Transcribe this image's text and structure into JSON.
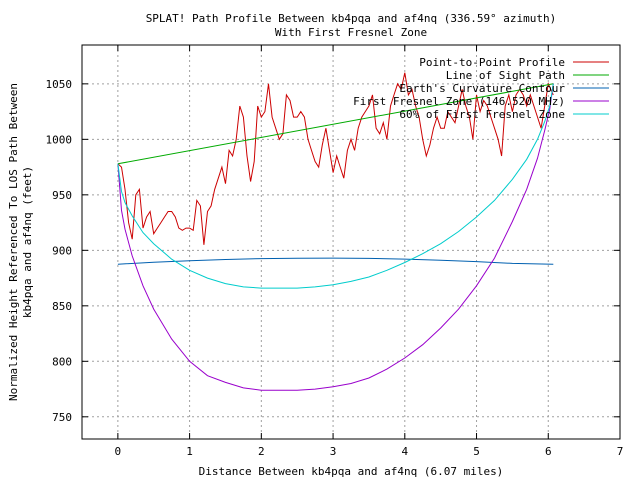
{
  "chart_data": {
    "type": "line",
    "title": [
      "SPLAT! Path Profile Between kb4pqa and af4nq (336.59° azimuth)",
      "With First Fresnel Zone"
    ],
    "xlabel": "Distance Between kb4pqa and af4nq (6.07 miles)",
    "ylabel": [
      "Normalized Height Referenced To LOS Path Between",
      "kb4pqa and af4nq (feet)"
    ],
    "xlim": [
      -0.5,
      7
    ],
    "ylim": [
      730,
      1085
    ],
    "xticks": [
      0,
      1,
      2,
      3,
      4,
      5,
      6,
      7
    ],
    "yticks": [
      750,
      800,
      850,
      900,
      950,
      1000,
      1050
    ],
    "grid": true,
    "legend_position": "top-right",
    "series": [
      {
        "name": "Point-to-Point Profile",
        "color": "#cc0000",
        "x": [
          0,
          0.05,
          0.1,
          0.15,
          0.2,
          0.25,
          0.3,
          0.35,
          0.4,
          0.45,
          0.5,
          0.55,
          0.6,
          0.65,
          0.7,
          0.75,
          0.8,
          0.85,
          0.9,
          0.95,
          1.0,
          1.05,
          1.1,
          1.15,
          1.2,
          1.25,
          1.3,
          1.35,
          1.4,
          1.45,
          1.5,
          1.55,
          1.6,
          1.65,
          1.7,
          1.75,
          1.8,
          1.85,
          1.9,
          1.95,
          2.0,
          2.05,
          2.1,
          2.15,
          2.2,
          2.25,
          2.3,
          2.35,
          2.4,
          2.45,
          2.5,
          2.55,
          2.6,
          2.65,
          2.7,
          2.75,
          2.8,
          2.85,
          2.9,
          2.95,
          3.0,
          3.05,
          3.1,
          3.15,
          3.2,
          3.25,
          3.3,
          3.35,
          3.4,
          3.45,
          3.5,
          3.55,
          3.6,
          3.65,
          3.7,
          3.75,
          3.8,
          3.85,
          3.9,
          3.95,
          4.0,
          4.05,
          4.1,
          4.15,
          4.2,
          4.25,
          4.3,
          4.35,
          4.4,
          4.45,
          4.5,
          4.55,
          4.6,
          4.65,
          4.7,
          4.75,
          4.8,
          4.85,
          4.9,
          4.95,
          5.0,
          5.05,
          5.1,
          5.15,
          5.2,
          5.25,
          5.3,
          5.35,
          5.4,
          5.45,
          5.5,
          5.55,
          5.6,
          5.65,
          5.7,
          5.75,
          5.8,
          5.85,
          5.9,
          5.95,
          6.0,
          6.07
        ],
        "y": [
          978,
          975,
          955,
          925,
          910,
          950,
          955,
          920,
          930,
          935,
          915,
          920,
          925,
          930,
          935,
          935,
          930,
          920,
          918,
          920,
          920,
          918,
          945,
          940,
          905,
          935,
          940,
          955,
          965,
          975,
          960,
          990,
          985,
          1000,
          1030,
          1020,
          985,
          962,
          980,
          1030,
          1020,
          1025,
          1050,
          1020,
          1010,
          1000,
          1005,
          1040,
          1035,
          1020,
          1020,
          1025,
          1020,
          1000,
          990,
          980,
          975,
          995,
          1010,
          990,
          970,
          985,
          975,
          965,
          990,
          1000,
          990,
          1010,
          1020,
          1025,
          1030,
          1040,
          1010,
          1005,
          1015,
          1000,
          1030,
          1040,
          1050,
          1045,
          1060,
          1040,
          1045,
          1030,
          1020,
          1000,
          985,
          995,
          1010,
          1020,
          1010,
          1010,
          1025,
          1020,
          1015,
          1030,
          1045,
          1030,
          1020,
          1000,
          1040,
          1025,
          1035,
          1030,
          1020,
          1010,
          1000,
          985,
          1030,
          1040,
          1025,
          1040,
          1045,
          1040,
          1030,
          1040,
          1030,
          1020,
          1010,
          1030,
          1050,
          1040
        ]
      },
      {
        "name": "Line of Sight Path",
        "color": "#00aa00",
        "x": [
          0,
          6.07
        ],
        "y": [
          978,
          1050
        ]
      },
      {
        "name": "Earth's Curvature Contour",
        "color": "#0060b0",
        "x": [
          0,
          0.5,
          1,
          1.5,
          2,
          2.5,
          3,
          3.5,
          4,
          4.5,
          5,
          5.5,
          6.07
        ],
        "y": [
          887.5,
          889.2,
          890.6,
          891.7,
          892.5,
          892.9,
          893.0,
          892.7,
          892.1,
          891.1,
          889.8,
          888.2,
          887.5
        ]
      },
      {
        "name": "First Fresnel Zone (146.520 MHz)",
        "color": "#9900cc",
        "x": [
          0,
          0.05,
          0.1,
          0.2,
          0.35,
          0.5,
          0.75,
          1,
          1.25,
          1.5,
          1.75,
          2,
          2.25,
          2.5,
          2.75,
          3,
          3.25,
          3.5,
          3.75,
          4,
          4.25,
          4.5,
          4.75,
          5,
          5.25,
          5.5,
          5.7,
          5.85,
          5.95,
          6.02,
          6.07
        ],
        "y": [
          978,
          936,
          919,
          895,
          868,
          847,
          820,
          800,
          787,
          781,
          776,
          774,
          774,
          774,
          775,
          777,
          780,
          785,
          793,
          803,
          815,
          830,
          847,
          868,
          893,
          926,
          955,
          983,
          1008,
          1027,
          1050
        ]
      },
      {
        "name": "60% of First Fresnel Zone",
        "color": "#00cccc",
        "x": [
          0,
          0.05,
          0.1,
          0.2,
          0.35,
          0.5,
          0.75,
          1,
          1.25,
          1.5,
          1.75,
          2,
          2.25,
          2.5,
          2.75,
          3,
          3.25,
          3.5,
          3.75,
          4,
          4.25,
          4.5,
          4.75,
          5,
          5.25,
          5.5,
          5.7,
          5.85,
          5.95,
          6.02,
          6.07
        ],
        "y": [
          978,
          953,
          943,
          931,
          916,
          906,
          892,
          882,
          875,
          870,
          867,
          866,
          866,
          866,
          867,
          869,
          872,
          876,
          882,
          889,
          897,
          906,
          917,
          930,
          945,
          964,
          982,
          1000,
          1016,
          1030,
          1050
        ]
      }
    ]
  }
}
